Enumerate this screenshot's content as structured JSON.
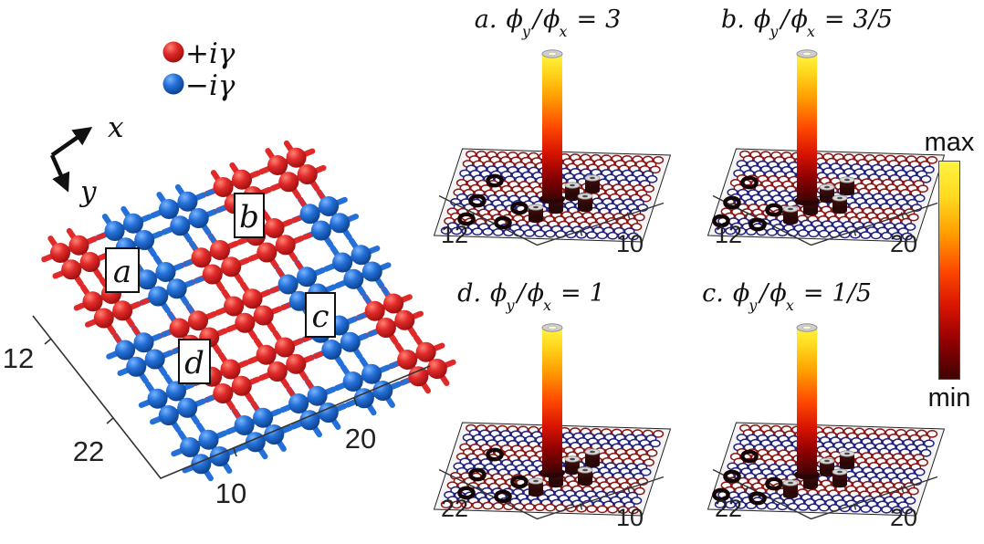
{
  "legend": {
    "items": [
      {
        "name": "gain-site",
        "label": "+iγ",
        "color": "#e02a2a"
      },
      {
        "name": "loss-site",
        "label": "−iγ",
        "color": "#2470d8"
      }
    ]
  },
  "axes_arrows": {
    "x_label": "x",
    "y_label": "y"
  },
  "lattice": {
    "region_labels": [
      "a",
      "b",
      "c",
      "d"
    ],
    "tick_labels": {
      "left": "12",
      "bottom_left": "22",
      "bottom": "10",
      "right": "20"
    },
    "plaquette_pattern": [
      "rbbrr",
      "rbrrb",
      "brrbb",
      "brrbr",
      "bbbbr"
    ],
    "colors": {
      "red_site": "#e02a2a",
      "red_light": "#ff8273",
      "red_dark": "#9c0f0f",
      "blue_site": "#2470d8",
      "blue_light": "#79b4ff",
      "blue_dark": "#0d3f8a"
    }
  },
  "math": {
    "phi": "ϕ",
    "sub_y": "y",
    "sub_x": "x",
    "slash": "/",
    "equals": "="
  },
  "panels": [
    {
      "id": "a",
      "prefix": "a.",
      "ratio_value": "3",
      "tick_left": "12",
      "tick_right": "10"
    },
    {
      "id": "b",
      "prefix": "b.",
      "ratio_value": "3/5",
      "tick_left": "12",
      "tick_right": "20"
    },
    {
      "id": "d",
      "prefix": "d.",
      "ratio_value": "1",
      "tick_left": "22",
      "tick_right": "10"
    },
    {
      "id": "c",
      "prefix": "c.",
      "ratio_value": "1/5",
      "tick_left": "22",
      "tick_right": "20"
    }
  ],
  "colorbar": {
    "max_label": "max",
    "min_label": "min",
    "gradient": [
      "#fff341",
      "#ffd91e",
      "#ff9d00",
      "#ff4a00",
      "#d81400",
      "#8f0000",
      "#3f0303"
    ]
  },
  "plane_colors": {
    "ring_red": "#8a1717",
    "ring_blue": "#22227e",
    "plane_fill": "#f4f4f4"
  },
  "chart_data": [
    {
      "type": "bar",
      "panel": "a",
      "title": "a. ϕy/ϕx = 3",
      "axis_ticks": [
        "12",
        "10"
      ],
      "z_range": [
        "min",
        "max"
      ],
      "data": "single dominant corner-localized peak reaching max; few faint satellite sites near base; rest of lattice at min"
    },
    {
      "type": "bar",
      "panel": "b",
      "title": "b. ϕy/ϕx = 3/5",
      "axis_ticks": [
        "12",
        "20"
      ],
      "z_range": [
        "min",
        "max"
      ],
      "data": "single dominant corner-localized peak reaching max; few faint satellite sites near base; rest of lattice at min"
    },
    {
      "type": "bar",
      "panel": "d",
      "title": "d. ϕy/ϕx = 1",
      "axis_ticks": [
        "22",
        "10"
      ],
      "z_range": [
        "min",
        "max"
      ],
      "data": "single dominant corner-localized peak reaching max; few faint satellite sites near base; rest of lattice at min"
    },
    {
      "type": "bar",
      "panel": "c",
      "title": "c. ϕy/ϕx = 1/5",
      "axis_ticks": [
        "22",
        "20"
      ],
      "z_range": [
        "min",
        "max"
      ],
      "data": "single dominant corner-localized peak reaching max; few faint satellite sites near base; rest of lattice at min"
    }
  ]
}
